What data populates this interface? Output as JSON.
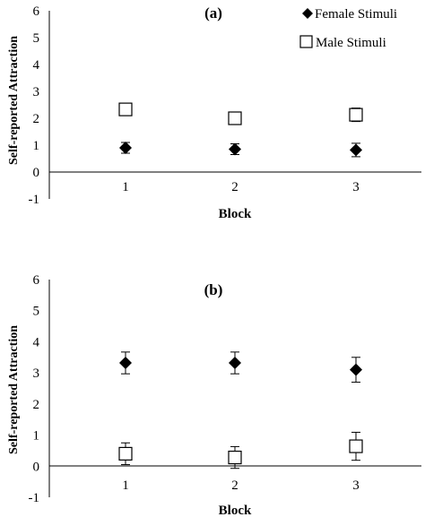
{
  "chart_data": [
    {
      "type": "scatter",
      "panel_label": "(a)",
      "xlabel": "Block",
      "ylabel": "Self-reported Attraction",
      "categories": [
        "1",
        "2",
        "3"
      ],
      "yticks": [
        "6",
        "5",
        "4",
        "3",
        "2",
        "1",
        "0",
        "-1"
      ],
      "ylim": [
        -1,
        6
      ],
      "grid": false,
      "legend_position": "top-right",
      "series": [
        {
          "name": "Female Stimuli",
          "marker": "diamond-filled",
          "color": "#000000",
          "values": [
            0.9,
            0.85,
            0.82
          ],
          "errors": [
            0.2,
            0.2,
            0.25
          ]
        },
        {
          "name": "Male Stimuli",
          "marker": "square-open",
          "color": "#000000",
          "values": [
            2.33,
            2.0,
            2.13
          ],
          "errors": [
            0.2,
            0.2,
            0.25
          ]
        }
      ]
    },
    {
      "type": "scatter",
      "panel_label": "(b)",
      "xlabel": "Block",
      "ylabel": "Self-reported Attraction",
      "categories": [
        "1",
        "2",
        "3"
      ],
      "yticks": [
        "6",
        "5",
        "4",
        "3",
        "2",
        "1",
        "0",
        "-1"
      ],
      "ylim": [
        -1,
        6
      ],
      "grid": false,
      "series": [
        {
          "name": "Female Stimuli",
          "marker": "diamond-filled",
          "color": "#000000",
          "values": [
            3.32,
            3.32,
            3.1
          ],
          "errors": [
            0.35,
            0.35,
            0.4
          ]
        },
        {
          "name": "Male Stimuli",
          "marker": "square-open",
          "color": "#000000",
          "values": [
            0.4,
            0.28,
            0.64
          ],
          "errors": [
            0.35,
            0.35,
            0.45
          ]
        }
      ]
    }
  ]
}
